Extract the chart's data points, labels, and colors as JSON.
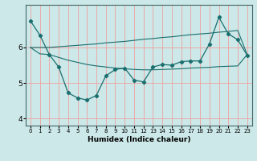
{
  "title": "",
  "xlabel": "Humidex (Indice chaleur)",
  "background_color": "#cce8e8",
  "grid_color": "#f0a0a0",
  "line_color": "#1a6e6e",
  "x_values": [
    0,
    1,
    2,
    3,
    4,
    5,
    6,
    7,
    8,
    9,
    10,
    11,
    12,
    13,
    14,
    15,
    16,
    17,
    18,
    19,
    20,
    21,
    22,
    23
  ],
  "line1_y": [
    6.75,
    6.35,
    5.8,
    5.45,
    4.72,
    4.58,
    4.52,
    4.65,
    5.2,
    5.38,
    5.42,
    5.08,
    5.03,
    5.45,
    5.52,
    5.5,
    5.6,
    5.62,
    5.62,
    6.1,
    6.85,
    6.38,
    6.22,
    5.78
  ],
  "line2_y": [
    6.0,
    6.0,
    6.0,
    6.02,
    6.04,
    6.06,
    6.08,
    6.1,
    6.13,
    6.15,
    6.17,
    6.2,
    6.23,
    6.25,
    6.28,
    6.3,
    6.33,
    6.36,
    6.38,
    6.4,
    6.43,
    6.45,
    6.48,
    5.8
  ],
  "line3_y": [
    6.0,
    5.82,
    5.8,
    5.72,
    5.64,
    5.58,
    5.52,
    5.48,
    5.45,
    5.42,
    5.4,
    5.38,
    5.37,
    5.37,
    5.38,
    5.39,
    5.4,
    5.42,
    5.43,
    5.44,
    5.46,
    5.47,
    5.48,
    5.8
  ],
  "ylim": [
    3.8,
    7.2
  ],
  "yticks": [
    4,
    5,
    6
  ],
  "xticks": [
    0,
    1,
    2,
    3,
    4,
    5,
    6,
    7,
    8,
    9,
    10,
    11,
    12,
    13,
    14,
    15,
    16,
    17,
    18,
    19,
    20,
    21,
    22,
    23
  ]
}
